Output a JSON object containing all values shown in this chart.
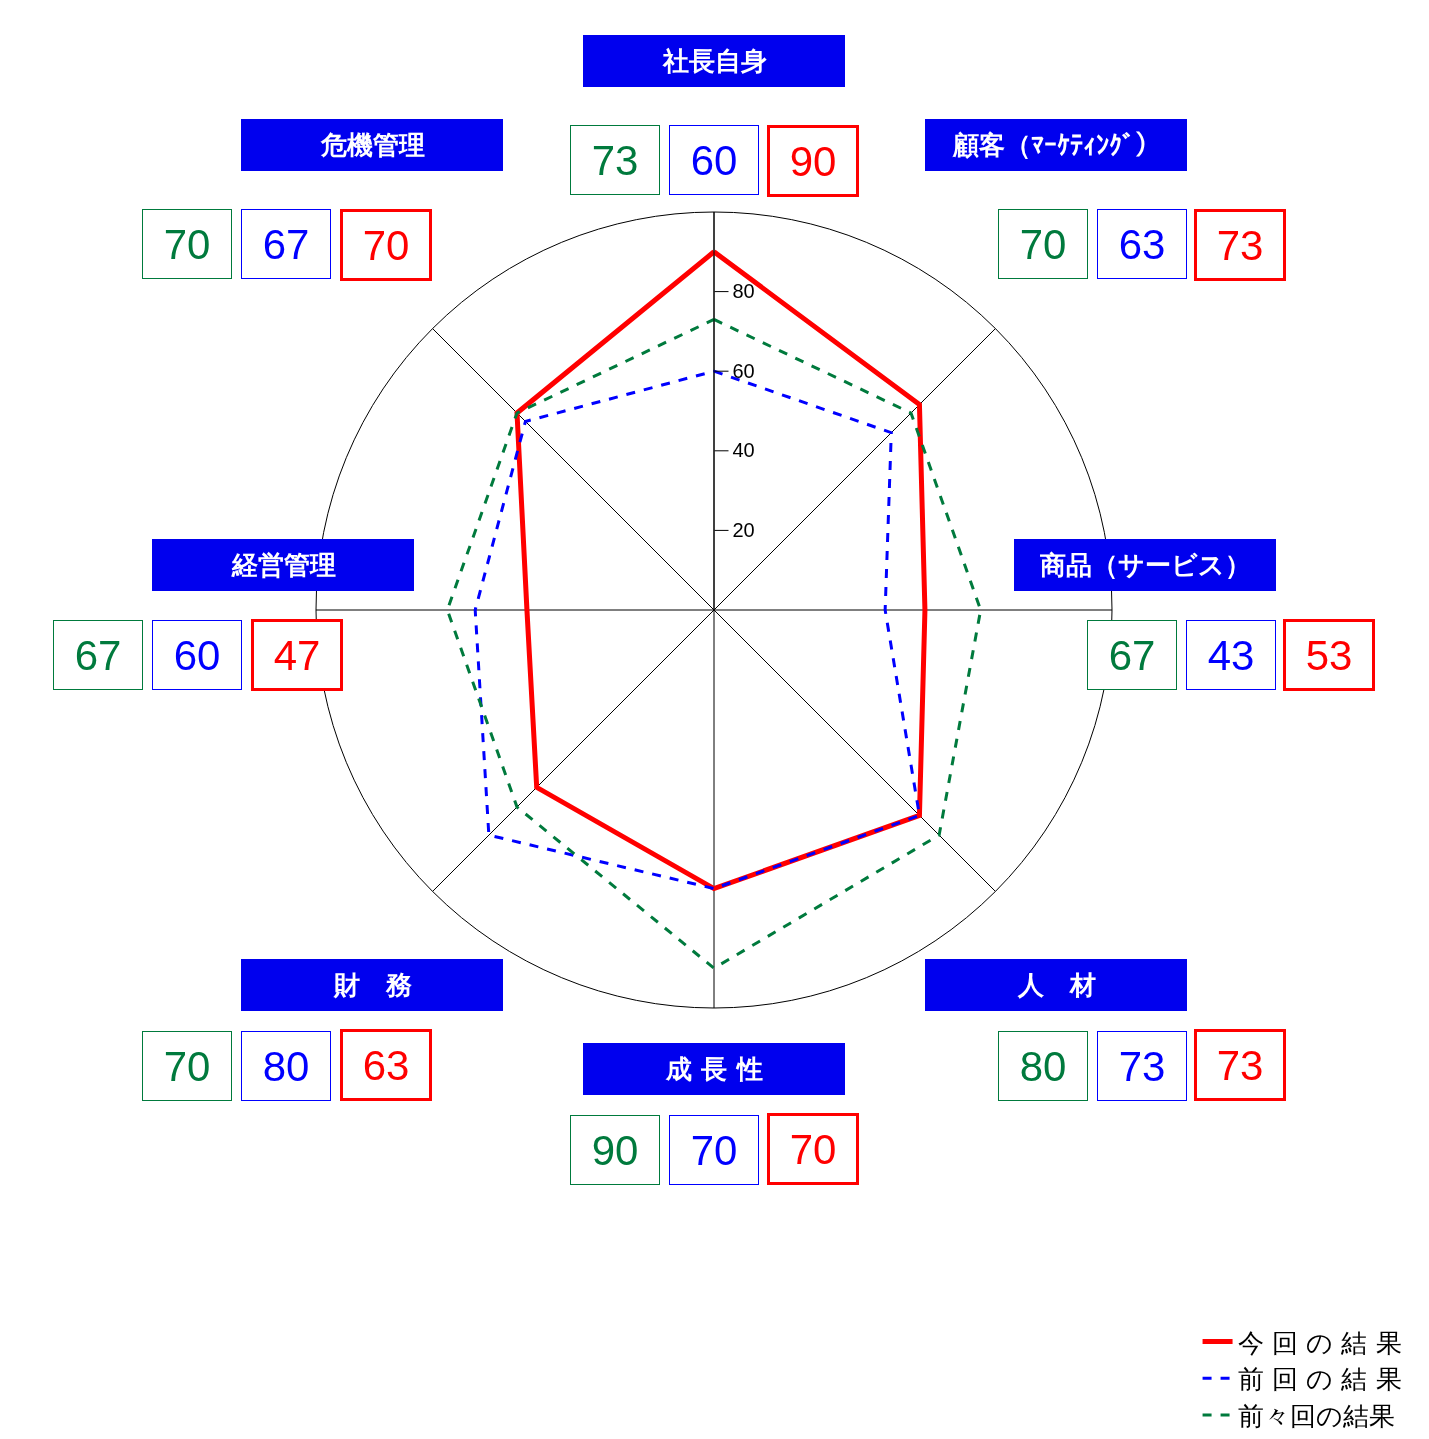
{
  "chart_data": {
    "type": "radar",
    "categories": [
      "社長自身",
      "顧客（ﾏｰｹﾃｨﾝｸﾞ）",
      "商品（サービス）",
      "人　材",
      "成 長 性",
      "財　務",
      "経営管理",
      "危機管理"
    ],
    "series": [
      {
        "name": "今 回 の 結 果",
        "color": "#ff0000",
        "line_style": "solid",
        "values": [
          90,
          73,
          53,
          73,
          70,
          63,
          47,
          70
        ]
      },
      {
        "name": "前 回 の 結 果",
        "color": "#0000ff",
        "line_style": "dashed",
        "values": [
          60,
          63,
          43,
          73,
          70,
          80,
          60,
          67
        ]
      },
      {
        "name": "前々回の結果",
        "color": "#007a3d",
        "line_style": "dashed",
        "values": [
          73,
          70,
          67,
          80,
          90,
          70,
          67,
          70
        ]
      }
    ],
    "ylim": [
      0,
      100
    ],
    "yticks": [
      20,
      40,
      60,
      80
    ],
    "annotations": [
      "73",
      "60",
      "90",
      "70",
      "63",
      "73",
      "67",
      "43",
      "53",
      "80",
      "73",
      "73",
      "90",
      "70",
      "70",
      "70",
      "80",
      "63",
      "67",
      "60",
      "47",
      "70",
      "67",
      "70"
    ],
    "grid": "x",
    "legend": "bottom right",
    "marker": "none"
  }
}
